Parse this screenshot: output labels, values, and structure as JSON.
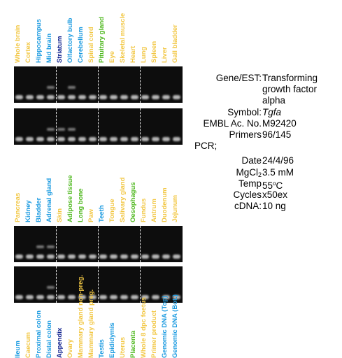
{
  "colors": {
    "yellow": "#f2c744",
    "blue": "#1a9ae0",
    "navy": "#0b1d8c",
    "green": "#4fb81f"
  },
  "panels": [
    {
      "lanes": [
        {
          "label": "Whole brain",
          "color": "yellow"
        },
        {
          "label": "Cortex",
          "color": "yellow"
        },
        {
          "label": "Hippocampus",
          "color": "blue"
        },
        {
          "label": "Mid brain",
          "color": "blue"
        },
        {
          "label": "Striatum",
          "color": "navy"
        },
        {
          "label": "Olfactory bulb",
          "color": "blue"
        },
        {
          "label": "Cerebellum",
          "color": "blue"
        },
        {
          "label": "Spinal cord",
          "color": "yellow"
        },
        {
          "label": "Pituitary gland",
          "color": "green"
        },
        {
          "label": "Eye",
          "color": "yellow"
        },
        {
          "label": "Skeletal muscle",
          "color": "yellow"
        },
        {
          "label": "Heart",
          "color": "yellow"
        },
        {
          "label": "Lung",
          "color": "yellow"
        },
        {
          "label": "Spleen",
          "color": "yellow"
        },
        {
          "label": "Liver",
          "color": "yellow"
        },
        {
          "label": "Gall bladder",
          "color": "yellow"
        }
      ]
    },
    {
      "lanes": [
        {
          "label": "Pancreas",
          "color": "yellow"
        },
        {
          "label": "Kidney",
          "color": "blue"
        },
        {
          "label": "Bladder",
          "color": "blue"
        },
        {
          "label": "Adrenal gland",
          "color": "blue"
        },
        {
          "label": "Skin",
          "color": "yellow"
        },
        {
          "label": "Adipose tissue",
          "color": "green"
        },
        {
          "label": "Long bone",
          "color": "green"
        },
        {
          "label": "Paw",
          "color": "yellow"
        },
        {
          "label": "Teeth",
          "color": "blue"
        },
        {
          "label": "Tongue",
          "color": "yellow"
        },
        {
          "label": "Salivary gland",
          "color": "yellow"
        },
        {
          "label": "Oesophagus",
          "color": "green"
        },
        {
          "label": "Fundus",
          "color": "yellow"
        },
        {
          "label": "Antrum",
          "color": "yellow"
        },
        {
          "label": "Duodenum",
          "color": "yellow"
        },
        {
          "label": "Jejunum",
          "color": "yellow"
        }
      ]
    },
    {
      "lanes": [
        {
          "label": "Ileum",
          "color": "blue"
        },
        {
          "label": "Caecum",
          "color": "yellow"
        },
        {
          "label": "Proximal colon",
          "color": "blue"
        },
        {
          "label": "Distal colon",
          "color": "blue"
        },
        {
          "label": "Appendix",
          "color": "navy"
        },
        {
          "label": "Ovary",
          "color": "yellow"
        },
        {
          "label": "Mammary gland non-preg.",
          "color": "yellow"
        },
        {
          "label": "Mammary gland preg.",
          "color": "yellow"
        },
        {
          "label": "Testis",
          "color": "blue"
        },
        {
          "label": "Epididymis",
          "color": "blue"
        },
        {
          "label": "Uterus",
          "color": "yellow"
        },
        {
          "label": "Placenta",
          "color": "green"
        },
        {
          "label": "Whole 8 dpc foetus",
          "color": "yellow"
        },
        {
          "label": "Primer product",
          "color": "yellow"
        },
        {
          "label": "Genomic DNA (Top)",
          "color": "blue"
        },
        {
          "label": "Genomic DNA (Bot.)",
          "color": "blue"
        }
      ]
    }
  ],
  "info": {
    "gene_label": "Gene/EST:",
    "gene_value": [
      "Transforming",
      "growth factor",
      "alpha"
    ],
    "symbol_label": "Symbol:",
    "symbol_value": "Tgfa",
    "embl_label": "EMBL Ac. No.",
    "embl_value": "M92420",
    "primers_label": "Primers",
    "primers_value": "96/145",
    "pcr_label": "PCR;",
    "date_label": "Date",
    "date_value": "24/4/96",
    "mgcl_label": "MgCl",
    "mgcl_sub": "2",
    "mgcl_value": "3.5 mM",
    "temp_label": "Temp",
    "temp_num": "55",
    "temp_sup": "o",
    "temp_unit": "C",
    "cycles_label": "Cycles",
    "cycles_value": "x50ex",
    "cdna_label": "cDNA:",
    "cdna_value": "10 ng"
  }
}
